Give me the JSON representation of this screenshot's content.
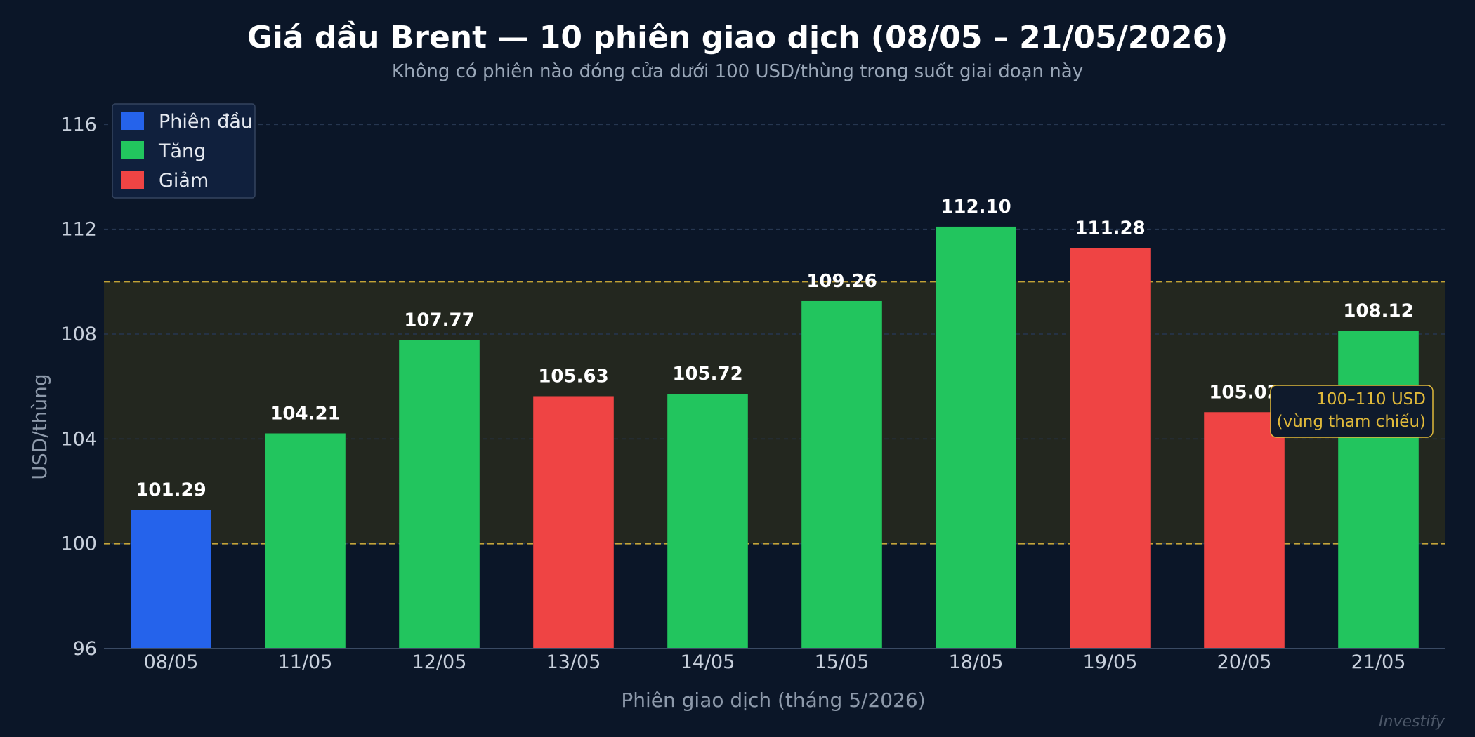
{
  "chart_data": {
    "type": "bar",
    "title": "Giá dầu Brent — 10 phiên giao dịch (08/05 – 21/05/2026)",
    "subtitle": "Không có phiên nào đóng cửa dưới 100 USD/thùng trong suốt giai đoạn này",
    "xlabel": "Phiên giao dịch (tháng 5/2026)",
    "ylabel": "USD/thùng",
    "ylim": [
      96,
      117
    ],
    "yticks": [
      96,
      100,
      104,
      108,
      112,
      116
    ],
    "grid": true,
    "categories": [
      "08/05",
      "11/05",
      "12/05",
      "13/05",
      "14/05",
      "15/05",
      "18/05",
      "19/05",
      "20/05",
      "21/05"
    ],
    "values": [
      101.29,
      104.21,
      107.77,
      105.63,
      105.72,
      109.26,
      112.1,
      111.28,
      105.02,
      108.12
    ],
    "value_labels": [
      "101.29",
      "104.21",
      "107.77",
      "105.63",
      "105.72",
      "109.26",
      "112.10",
      "111.28",
      "105.02",
      "108.12"
    ],
    "bar_kinds": [
      "first",
      "up",
      "up",
      "down",
      "up",
      "up",
      "up",
      "down",
      "down",
      "up"
    ],
    "colors": {
      "first": "#2563eb",
      "up": "#22c55e",
      "down": "#ef4444",
      "band": "#e0b93a",
      "band_fill": "#23271f",
      "grid": "#263650",
      "axis": "#3a4a63"
    },
    "legend": {
      "position": "top-left",
      "entries": [
        {
          "key": "first",
          "label": "Phiên đầu"
        },
        {
          "key": "up",
          "label": "Tăng"
        },
        {
          "key": "down",
          "label": "Giảm"
        }
      ]
    },
    "reference_band": {
      "from": 100,
      "to": 110,
      "label_line1": "100–110 USD",
      "label_line2": "(vùng tham chiếu)"
    },
    "watermark": "Investify"
  }
}
